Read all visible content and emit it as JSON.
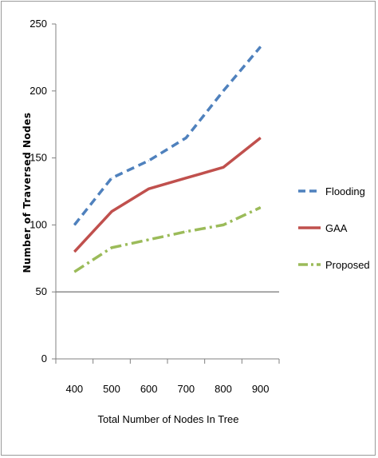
{
  "chart_data": {
    "type": "line",
    "title": "",
    "xlabel": "Total Number of Nodes In Tree",
    "ylabel": "Number of Traversed Nodes",
    "categories": [
      "400",
      "500",
      "600",
      "700",
      "800",
      "900"
    ],
    "x": [
      400,
      500,
      600,
      700,
      800,
      900
    ],
    "ylim": [
      0,
      250
    ],
    "yticks": [
      0,
      50,
      100,
      150,
      200,
      250
    ],
    "grid": "horizontal gridline at 50 only",
    "legend_position": "right",
    "series": [
      {
        "name": "Flooding",
        "values": [
          100,
          135,
          148,
          165,
          200,
          233
        ],
        "color": "#4f81bd",
        "style": "dashed"
      },
      {
        "name": "GAA",
        "values": [
          80,
          110,
          127,
          135,
          143,
          165
        ],
        "color": "#c0504d",
        "style": "solid"
      },
      {
        "name": "Proposed",
        "values": [
          65,
          83,
          89,
          95,
          100,
          113
        ],
        "color": "#9bbb59",
        "style": "dash-dot"
      }
    ]
  }
}
